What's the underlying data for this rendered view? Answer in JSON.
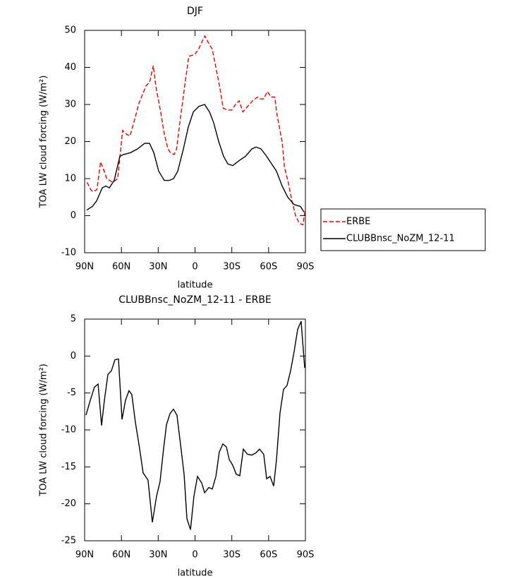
{
  "chart_data": [
    {
      "type": "line",
      "title": "DJF",
      "xlabel": "latitude",
      "ylabel": "TOA LW cloud forcing (W/m²)",
      "xlim": [
        90,
        -90
      ],
      "xticks": [
        {
          "value": 90,
          "label": "90N"
        },
        {
          "value": 60,
          "label": "60N"
        },
        {
          "value": 30,
          "label": "30N"
        },
        0,
        {
          "value": -30,
          "label": "30S"
        },
        {
          "value": -60,
          "label": "60S"
        },
        {
          "value": -90,
          "label": "90S"
        }
      ],
      "ylim": [
        -10,
        50
      ],
      "yticks": [
        -10,
        0,
        10,
        20,
        30,
        40,
        50
      ],
      "legend": "right",
      "series": [
        {
          "name": "ERBE",
          "color": "#e00000",
          "style": "dashed",
          "x": [
            88,
            85,
            83,
            80,
            77,
            74,
            72,
            67,
            63,
            59,
            56,
            53,
            50,
            46,
            40,
            37,
            34,
            32,
            28,
            25,
            22,
            20,
            17,
            15,
            12,
            8,
            5,
            0,
            -3,
            -8,
            -12,
            -14,
            -17,
            -20,
            -23,
            -27,
            -30,
            -33,
            -36,
            -39,
            -43,
            -47,
            -51,
            -53,
            -56,
            -59,
            -62,
            -65,
            -67,
            -71,
            -73,
            -76,
            -79,
            -82,
            -85,
            -88,
            -90
          ],
          "values": [
            9,
            7,
            6.5,
            7,
            14.5,
            12,
            10,
            9,
            10,
            23,
            22,
            21.5,
            25,
            30,
            35,
            36,
            40.5,
            35,
            28,
            22,
            18,
            17,
            16.5,
            18,
            26,
            36,
            43,
            43.5,
            45,
            48.5,
            46,
            45,
            40,
            35,
            29,
            28.5,
            28.5,
            30,
            31,
            28,
            29.5,
            31,
            32,
            31.5,
            31.5,
            33.5,
            32,
            32,
            27,
            20,
            13,
            9,
            4,
            0,
            -2,
            -2.5,
            2
          ]
        },
        {
          "name": "CLUBBnsc_NoZM_12-11",
          "color": "#000000",
          "style": "solid",
          "x": [
            88.3,
            83.7,
            80.2,
            75.6,
            72.8,
            69.9,
            65.9,
            61.3,
            58.4,
            52.6,
            46.9,
            41.1,
            37.1,
            33.6,
            29.6,
            25,
            21,
            17.5,
            14.1,
            9.5,
            5.4,
            1.4,
            -3.2,
            -7.8,
            -11.8,
            -15.3,
            -19.3,
            -23.3,
            -26.7,
            -30.7,
            -36.5,
            -41.1,
            -46.3,
            -49.7,
            -53.8,
            -58.4,
            -62.4,
            -66.4,
            -71,
            -75.6,
            -80.8,
            -85.9,
            -88.8
          ],
          "values": [
            1.5,
            2.5,
            4,
            7.5,
            8,
            7.5,
            9.5,
            16,
            16.5,
            17,
            18,
            19.5,
            19.5,
            17,
            12,
            9.5,
            9.5,
            10,
            12,
            18,
            24,
            28,
            29.5,
            30,
            28,
            25,
            20,
            16,
            14,
            13.5,
            15,
            16,
            18,
            18.5,
            18,
            16,
            14,
            12,
            8,
            5,
            3,
            2.5,
            1
          ]
        }
      ]
    },
    {
      "type": "line",
      "title": "CLUBBnsc_NoZM_12-11 - ERBE",
      "xlabel": "latitude",
      "ylabel": "TOA LW cloud forcing (W/m²)",
      "xlim": [
        90,
        -90
      ],
      "xticks": [
        {
          "value": 90,
          "label": "90N"
        },
        {
          "value": 60,
          "label": "60N"
        },
        {
          "value": 30,
          "label": "30N"
        },
        0,
        {
          "value": -30,
          "label": "30S"
        },
        {
          "value": -60,
          "label": "60S"
        },
        {
          "value": -90,
          "label": "90S"
        }
      ],
      "ylim": [
        -25,
        5
      ],
      "yticks": [
        -25,
        -20,
        -15,
        -10,
        -5,
        0,
        5
      ],
      "series": [
        {
          "color": "#000000",
          "style": "solid",
          "x": [
            88.9,
            85.4,
            82,
            79,
            76.2,
            73.9,
            71,
            68.2,
            65.3,
            62.4,
            59.5,
            56.7,
            53.8,
            51.5,
            48.6,
            45.2,
            42.3,
            38.3,
            34.8,
            31.4,
            28.5,
            25.6,
            23.3,
            20.4,
            17.6,
            14.7,
            11.8,
            8.9,
            6.6,
            3.7,
            0.9,
            -2,
            -5.5,
            -7.8,
            -11.2,
            -14.1,
            -17,
            -19.8,
            -22.7,
            -25.6,
            -27.9,
            -30.8,
            -33.6,
            -36.5,
            -39.4,
            -42.8,
            -46.3,
            -49.7,
            -52.6,
            -56,
            -58.4,
            -61.2,
            -64.1,
            -66.4,
            -69.3,
            -72.2,
            -75,
            -77.9,
            -80.8,
            -83.7,
            -86.5,
            -89.4
          ],
          "values": [
            -8,
            -6,
            -4.2,
            -3.8,
            -9.4,
            -6,
            -2.5,
            -2,
            -0.5,
            -0.4,
            -8.6,
            -6,
            -4.7,
            -5.2,
            -9,
            -12.5,
            -15.8,
            -16.8,
            -22.5,
            -19,
            -17,
            -12.5,
            -9.3,
            -7.8,
            -7.2,
            -8,
            -12,
            -16,
            -22,
            -23.5,
            -19,
            -16.3,
            -17.2,
            -18.5,
            -17.8,
            -18,
            -16.3,
            -13,
            -11.9,
            -12.3,
            -14,
            -14.8,
            -16,
            -16.2,
            -12.6,
            -13.3,
            -13.4,
            -13.1,
            -12.6,
            -13.3,
            -16.6,
            -16.3,
            -17.6,
            -14,
            -7.7,
            -4.5,
            -4,
            -2,
            0.6,
            3.6,
            4.7,
            -1.6
          ]
        }
      ]
    }
  ]
}
